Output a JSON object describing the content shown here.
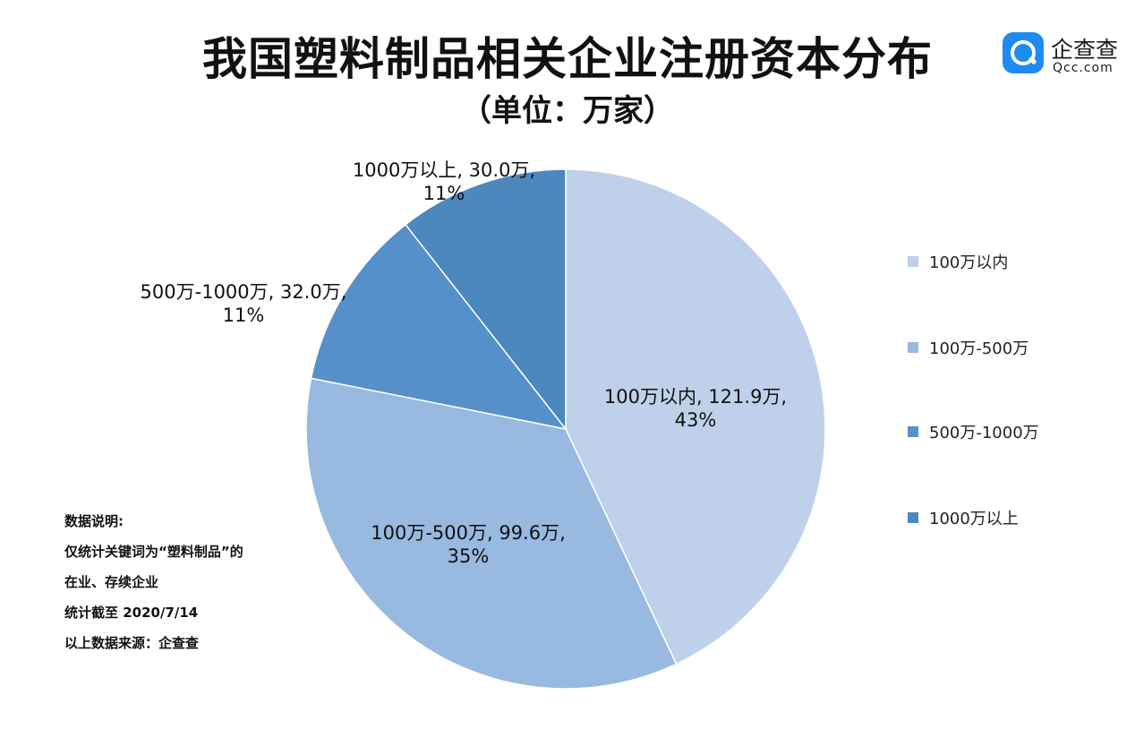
{
  "header": {
    "title": "我国塑料制品相关企业注册资本分布",
    "subtitle": "（单位：万家）"
  },
  "logo": {
    "name_cn": "企查查",
    "name_en": "Qcc.com"
  },
  "chart_data": {
    "type": "pie",
    "title": "我国塑料制品相关企业注册资本分布",
    "subtitle": "（单位：万家）",
    "legend_position": "right",
    "slices": [
      {
        "name": "100万以内",
        "value": 121.9,
        "value_label": "121.9万",
        "percent_label": "43%",
        "color": "#bfd1ea"
      },
      {
        "name": "100万-500万",
        "value": 99.6,
        "value_label": "99.6万",
        "percent_label": "35%",
        "color": "#98b9e0"
      },
      {
        "name": "500万-1000万",
        "value": 32.0,
        "value_label": "32.0万",
        "percent_label": "11%",
        "color": "#5590ca"
      },
      {
        "name": "1000万以上",
        "value": 30.0,
        "value_label": "30.0万",
        "percent_label": "11%",
        "color": "#4c87be"
      }
    ]
  },
  "notes": [
    "数据说明:",
    "仅统计关键词为“塑料制品”的",
    "在业、存续企业",
    "统计截至 2020/7/14",
    "以上数据来源：企查查"
  ]
}
